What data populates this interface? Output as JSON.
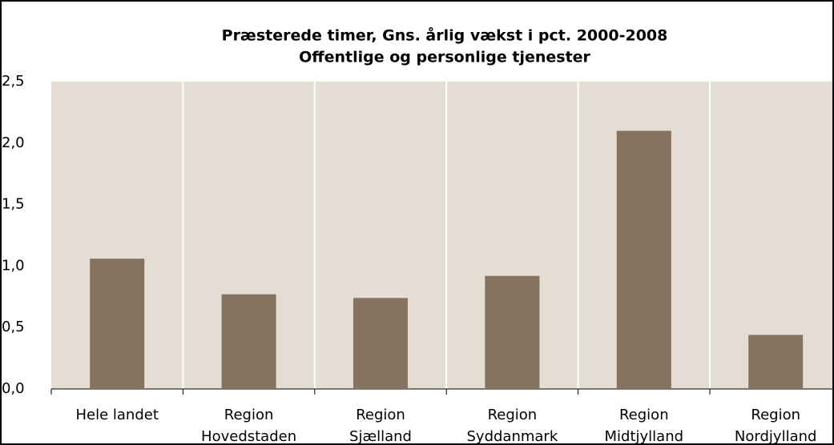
{
  "chart_data": {
    "type": "bar",
    "title": "Præsterede timer, Gns. årlig vækst i pct. 2000-2008",
    "subtitle": "Offentlige og personlige tjenester",
    "categories": [
      "Hele landet",
      "Region\nHovedstaden",
      "Region\nSjælland",
      "Region\nSyddanmark",
      "Region\nMidtjylland",
      "Region\nNordjylland"
    ],
    "values": [
      1.06,
      0.77,
      0.74,
      0.92,
      2.1,
      0.44
    ],
    "color": "#85735f",
    "ylim": [
      0,
      2.5
    ],
    "yticks": [
      {
        "value": 0,
        "label": "0,0"
      },
      {
        "value": 0.5,
        "label": "0,5"
      },
      {
        "value": 1,
        "label": "1,0"
      },
      {
        "value": 1.5,
        "label": "1,5"
      },
      {
        "value": 2,
        "label": "2,0"
      },
      {
        "value": 2.5,
        "label": "2,5"
      }
    ],
    "grid": false
  }
}
